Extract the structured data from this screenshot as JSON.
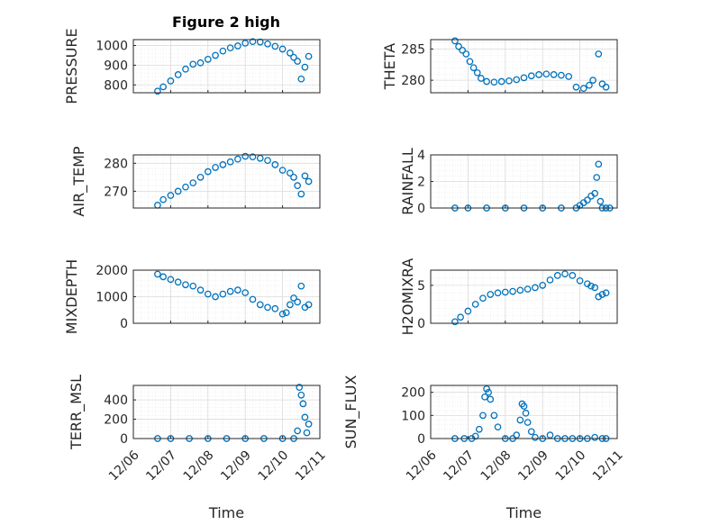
{
  "figure": {
    "title": "Figure 2 high",
    "marker_color": "#0072BD"
  },
  "chart_data": [
    {
      "type": "scatter",
      "ylabel": "PRESSURE",
      "ylim": [
        760,
        1030
      ],
      "yticks": [
        800,
        900,
        1000
      ],
      "xlim": [
        0,
        5
      ],
      "xticks": [
        0,
        1,
        2,
        3,
        4,
        5
      ],
      "xticklabels": [
        "12/06",
        "12/07",
        "12/08",
        "12/09",
        "12/10",
        "12/11"
      ],
      "xlabel": "",
      "grid": true,
      "x": [
        0.65,
        0.8,
        1.0,
        1.2,
        1.4,
        1.6,
        1.8,
        2.0,
        2.2,
        2.4,
        2.6,
        2.8,
        3.0,
        3.2,
        3.4,
        3.6,
        3.8,
        4.0,
        4.2,
        4.3,
        4.4,
        4.5,
        4.6,
        4.7
      ],
      "y": [
        768,
        790,
        820,
        852,
        880,
        905,
        912,
        930,
        950,
        972,
        988,
        998,
        1012,
        1020,
        1018,
        1008,
        996,
        982,
        962,
        940,
        920,
        830,
        890,
        945
      ]
    },
    {
      "type": "scatter",
      "ylabel": "THETA",
      "ylim": [
        278,
        286.5
      ],
      "yticks": [
        280,
        285
      ],
      "xlim": [
        0,
        5
      ],
      "xticks": [
        0,
        1,
        2,
        3,
        4,
        5
      ],
      "xticklabels": [
        "12/06",
        "12/07",
        "12/08",
        "12/09",
        "12/10",
        "12/11"
      ],
      "xlabel": "",
      "grid": true,
      "x": [
        0.65,
        0.75,
        0.85,
        0.95,
        1.05,
        1.15,
        1.25,
        1.35,
        1.5,
        1.7,
        1.9,
        2.1,
        2.3,
        2.5,
        2.7,
        2.9,
        3.1,
        3.3,
        3.5,
        3.7,
        3.9,
        4.1,
        4.25,
        4.35,
        4.5,
        4.6,
        4.7
      ],
      "y": [
        286.3,
        285.4,
        284.8,
        284.2,
        283.0,
        282.0,
        281.2,
        280.3,
        279.8,
        279.7,
        279.8,
        279.9,
        280.1,
        280.4,
        280.7,
        280.9,
        281.0,
        280.9,
        280.8,
        280.6,
        278.9,
        278.7,
        279.2,
        280.0,
        284.2,
        279.4,
        278.9
      ]
    },
    {
      "type": "scatter",
      "ylabel": "AIR_TEMP",
      "ylim": [
        264,
        283
      ],
      "yticks": [
        270,
        280
      ],
      "xlim": [
        0,
        5
      ],
      "xticks": [
        0,
        1,
        2,
        3,
        4,
        5
      ],
      "xticklabels": [
        "12/06",
        "12/07",
        "12/08",
        "12/09",
        "12/10",
        "12/11"
      ],
      "xlabel": "",
      "grid": true,
      "x": [
        0.65,
        0.8,
        1.0,
        1.2,
        1.4,
        1.6,
        1.8,
        2.0,
        2.2,
        2.4,
        2.6,
        2.8,
        3.0,
        3.2,
        3.4,
        3.6,
        3.8,
        4.0,
        4.2,
        4.3,
        4.4,
        4.5,
        4.6,
        4.7
      ],
      "y": [
        265,
        267,
        268.5,
        270,
        271.5,
        273,
        275,
        277,
        278.5,
        279.5,
        280.5,
        281.5,
        282.5,
        282.3,
        281.8,
        281,
        279.5,
        277.5,
        276.5,
        275,
        272,
        269,
        275.5,
        273.5
      ]
    },
    {
      "type": "scatter",
      "ylabel": "RAINFALL",
      "ylim": [
        0,
        4
      ],
      "yticks": [
        0,
        2,
        4
      ],
      "xlim": [
        0,
        5
      ],
      "xticks": [
        0,
        1,
        2,
        3,
        4,
        5
      ],
      "xticklabels": [
        "12/06",
        "12/07",
        "12/08",
        "12/09",
        "12/10",
        "12/11"
      ],
      "xlabel": "",
      "grid": true,
      "x": [
        0.65,
        1.0,
        1.5,
        2.0,
        2.5,
        3.0,
        3.5,
        3.9,
        4.0,
        4.1,
        4.2,
        4.3,
        4.4,
        4.45,
        4.5,
        4.55,
        4.6,
        4.7,
        4.8
      ],
      "y": [
        0,
        0,
        0,
        0,
        0,
        0,
        0,
        0,
        0.2,
        0.4,
        0.6,
        0.9,
        1.1,
        2.3,
        3.3,
        0.5,
        0,
        0,
        0
      ]
    },
    {
      "type": "scatter",
      "ylabel": "MIXDEPTH",
      "ylim": [
        0,
        2000
      ],
      "yticks": [
        0,
        1000,
        2000
      ],
      "xlim": [
        0,
        5
      ],
      "xticks": [
        0,
        1,
        2,
        3,
        4,
        5
      ],
      "xticklabels": [
        "12/06",
        "12/07",
        "12/08",
        "12/09",
        "12/10",
        "12/11"
      ],
      "xlabel": "",
      "grid": true,
      "x": [
        0.65,
        0.8,
        1.0,
        1.2,
        1.4,
        1.6,
        1.8,
        2.0,
        2.2,
        2.4,
        2.6,
        2.8,
        3.0,
        3.2,
        3.4,
        3.6,
        3.8,
        4.0,
        4.1,
        4.2,
        4.3,
        4.4,
        4.5,
        4.6,
        4.7
      ],
      "y": [
        1850,
        1750,
        1650,
        1550,
        1450,
        1400,
        1250,
        1100,
        1000,
        1100,
        1200,
        1250,
        1150,
        900,
        700,
        600,
        550,
        350,
        400,
        700,
        950,
        800,
        1400,
        600,
        700
      ]
    },
    {
      "type": "scatter",
      "ylabel": "H2OMIXRA",
      "ylim": [
        0,
        7
      ],
      "yticks": [
        0,
        5
      ],
      "xlim": [
        0,
        5
      ],
      "xticks": [
        0,
        1,
        2,
        3,
        4,
        5
      ],
      "xticklabels": [
        "12/06",
        "12/07",
        "12/08",
        "12/09",
        "12/10",
        "12/11"
      ],
      "xlabel": "",
      "grid": true,
      "x": [
        0.65,
        0.8,
        1.0,
        1.2,
        1.4,
        1.6,
        1.8,
        2.0,
        2.2,
        2.4,
        2.6,
        2.8,
        3.0,
        3.2,
        3.4,
        3.6,
        3.8,
        4.0,
        4.2,
        4.3,
        4.4,
        4.5,
        4.6,
        4.7
      ],
      "y": [
        0.2,
        0.8,
        1.6,
        2.5,
        3.3,
        3.8,
        4.0,
        4.1,
        4.2,
        4.35,
        4.5,
        4.7,
        5.0,
        5.7,
        6.3,
        6.5,
        6.3,
        5.6,
        5.2,
        4.9,
        4.7,
        3.5,
        3.8,
        4.0
      ]
    },
    {
      "type": "scatter",
      "ylabel": "TERR_MSL",
      "ylim": [
        0,
        550
      ],
      "yticks": [
        0,
        200,
        400
      ],
      "xlim": [
        0,
        5
      ],
      "xticks": [
        0,
        1,
        2,
        3,
        4,
        5
      ],
      "xticklabels": [
        "12/06",
        "12/07",
        "12/08",
        "12/09",
        "12/10",
        "12/11"
      ],
      "xlabel": "Time",
      "grid": true,
      "x": [
        0.65,
        1.0,
        1.5,
        2.0,
        2.5,
        3.0,
        3.5,
        4.0,
        4.3,
        4.4,
        4.45,
        4.5,
        4.55,
        4.6,
        4.65,
        4.7
      ],
      "y": [
        0,
        0,
        0,
        0,
        0,
        0,
        0,
        0,
        0,
        80,
        530,
        450,
        360,
        220,
        60,
        150
      ]
    },
    {
      "type": "scatter",
      "ylabel": "SUN_FLUX",
      "ylim": [
        0,
        230
      ],
      "yticks": [
        0,
        100,
        200
      ],
      "xlim": [
        0,
        5
      ],
      "xticks": [
        0,
        1,
        2,
        3,
        4,
        5
      ],
      "xticklabels": [
        "12/06",
        "12/07",
        "12/08",
        "12/09",
        "12/10",
        "12/11"
      ],
      "xlabel": "Time",
      "grid": true,
      "x": [
        0.65,
        0.9,
        1.1,
        1.2,
        1.3,
        1.4,
        1.45,
        1.5,
        1.55,
        1.6,
        1.7,
        1.8,
        2.0,
        2.2,
        2.3,
        2.4,
        2.45,
        2.5,
        2.55,
        2.6,
        2.7,
        2.8,
        3.0,
        3.2,
        3.4,
        3.6,
        3.8,
        4.0,
        4.2,
        4.4,
        4.6,
        4.7
      ],
      "y": [
        0,
        0,
        0,
        10,
        40,
        100,
        180,
        215,
        200,
        170,
        100,
        50,
        0,
        0,
        15,
        80,
        150,
        140,
        110,
        70,
        30,
        5,
        0,
        15,
        0,
        0,
        0,
        0,
        0,
        5,
        0,
        0
      ]
    }
  ]
}
